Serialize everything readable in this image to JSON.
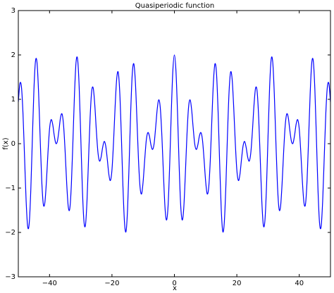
{
  "chart_data": {
    "type": "line",
    "title": "Quasiperiodic function",
    "x_label": "x",
    "y_label": "f(x)",
    "color": "#0000ff",
    "grid": false,
    "xlim": [
      -50,
      50
    ],
    "ylim": [
      -3,
      3
    ],
    "xticks": [
      {
        "value": -40,
        "label": "−40"
      },
      {
        "value": -20,
        "label": "−20"
      },
      0,
      20,
      40
    ],
    "yticks": [
      {
        "value": -3,
        "label": "−3"
      },
      {
        "value": -2,
        "label": "−2"
      },
      {
        "value": -1,
        "label": "−1"
      },
      0,
      1,
      2,
      3
    ],
    "x": [
      -50,
      -49.5,
      -49,
      -48.5,
      -48,
      -47.5,
      -47,
      -46.5,
      -46,
      -45.5,
      -45,
      -44.5,
      -44,
      -43.5,
      -43,
      -42.5,
      -42,
      -41.5,
      -41,
      -40.5,
      -40,
      -39.5,
      -39,
      -38.5,
      -38,
      -37.5,
      -37,
      -36.5,
      -36,
      -35.5,
      -35,
      -34.5,
      -34,
      -33.5,
      -33,
      -32.5,
      -32,
      -31.5,
      -31,
      -30.5,
      -30,
      -29.5,
      -29,
      -28.5,
      -28,
      -27.5,
      -27,
      -26.5,
      -26,
      -25.5,
      -25,
      -24.5,
      -24,
      -23.5,
      -23,
      -22.5,
      -22,
      -21.5,
      -21,
      -20.5,
      -20,
      -19.5,
      -19,
      -18.5,
      -18,
      -17.5,
      -17,
      -16.5,
      -16,
      -15.5,
      -15,
      -14.5,
      -14,
      -13.5,
      -13,
      -12.5,
      -12,
      -11.5,
      -11,
      -10.5,
      -10,
      -9.5,
      -9,
      -8.5,
      -8,
      -7.5,
      -7,
      -6.5,
      -6,
      -5.5,
      -5,
      -4.5,
      -4,
      -3.5,
      -3,
      -2.5,
      -2,
      -1.5,
      -1,
      -0.5,
      0,
      0.5,
      1,
      1.5,
      2,
      2.5,
      3,
      3.5,
      4,
      4.5,
      5,
      5.5,
      6,
      6.5,
      7,
      7.5,
      8,
      8.5,
      9,
      9.5,
      10,
      10.5,
      11,
      11.5,
      12,
      12.5,
      13,
      13.5,
      14,
      14.5,
      15,
      15.5,
      16,
      16.5,
      17,
      17.5,
      18,
      18.5,
      19,
      19.5,
      20,
      20.5,
      21,
      21.5,
      22,
      22.5,
      23,
      23.5,
      24,
      24.5,
      25,
      25.5,
      26,
      26.5,
      27,
      27.5,
      28,
      28.5,
      29,
      29.5,
      30,
      30.5,
      31,
      31.5,
      32,
      32.5,
      33,
      33.5,
      34,
      34.5,
      35,
      35.5,
      36,
      36.5,
      37,
      37.5,
      38,
      38.5,
      39,
      39.5,
      40,
      40.5,
      41,
      41.5,
      42,
      42.5,
      43,
      43.5,
      44,
      44.5,
      45,
      45.5,
      46,
      46.5,
      47,
      47.5,
      48,
      48.5,
      49,
      49.5,
      50
    ],
    "values": [
      0.94,
      1.35,
      1.28,
      0.67,
      -0.31,
      -1.29,
      -1.87,
      -1.79,
      -1.04,
      0.11,
      1.22,
      1.86,
      1.82,
      1.14,
      0.12,
      -0.83,
      -1.36,
      -1.33,
      -0.85,
      -0.2,
      0.33,
      0.54,
      0.44,
      0.19,
      0.01,
      0.05,
      0.29,
      0.58,
      0.67,
      0.41,
      -0.18,
      -0.9,
      -1.42,
      -1.46,
      -0.91,
      0.07,
      1.13,
      1.84,
      1.9,
      1.27,
      0.17,
      -0.98,
      -1.73,
      -1.84,
      -1.29,
      -0.34,
      0.59,
      1.18,
      1.25,
      0.87,
      0.29,
      -0.19,
      -0.39,
      -0.31,
      -0.09,
      0.05,
      -0.05,
      -0.35,
      -0.69,
      -0.83,
      -0.59,
      0.03,
      0.82,
      1.45,
      1.61,
      1.15,
      0.19,
      -0.93,
      -1.76,
      -1.98,
      -1.47,
      -0.44,
      0.72,
      1.57,
      1.8,
      1.39,
      0.54,
      -0.37,
      -0.98,
      -1.13,
      -0.84,
      -0.35,
      0.08,
      0.25,
      0.17,
      -0.03,
      -0.13,
      0,
      0.37,
      0.78,
      0.99,
      0.79,
      0.16,
      -0.7,
      -1.45,
      -1.72,
      -1.37,
      -0.45,
      0.7,
      1.64,
      2,
      1.64,
      0.7,
      -0.45,
      -1.37,
      -1.72,
      -1.45,
      -0.7,
      0.16,
      0.79,
      0.99,
      0.78,
      0.37,
      0,
      -0.13,
      -0.03,
      0.17,
      0.25,
      0.08,
      -0.35,
      -0.84,
      -1.13,
      -0.98,
      -0.37,
      0.54,
      1.39,
      1.8,
      1.57,
      0.72,
      -0.44,
      -1.47,
      -1.98,
      -1.76,
      -0.93,
      0.19,
      1.15,
      1.61,
      1.45,
      0.82,
      0.03,
      -0.59,
      -0.83,
      -0.69,
      -0.35,
      -0.05,
      0.05,
      -0.09,
      -0.31,
      -0.39,
      -0.19,
      0.29,
      0.87,
      1.25,
      1.18,
      0.59,
      -0.34,
      -1.29,
      -1.84,
      -1.73,
      -0.98,
      0.17,
      1.27,
      1.9,
      1.84,
      1.13,
      0.07,
      -0.91,
      -1.46,
      -1.42,
      -0.9,
      -0.18,
      0.41,
      0.67,
      0.58,
      0.29,
      0.05,
      0.01,
      0.19,
      0.44,
      0.54,
      0.33,
      -0.2,
      -0.85,
      -1.33,
      -1.36,
      -0.83,
      0.12,
      1.14,
      1.82,
      1.86,
      1.22,
      0.11,
      -1.04,
      -1.79,
      -1.87,
      -1.29,
      -0.31,
      0.67,
      1.28,
      1.35,
      0.94
    ]
  }
}
